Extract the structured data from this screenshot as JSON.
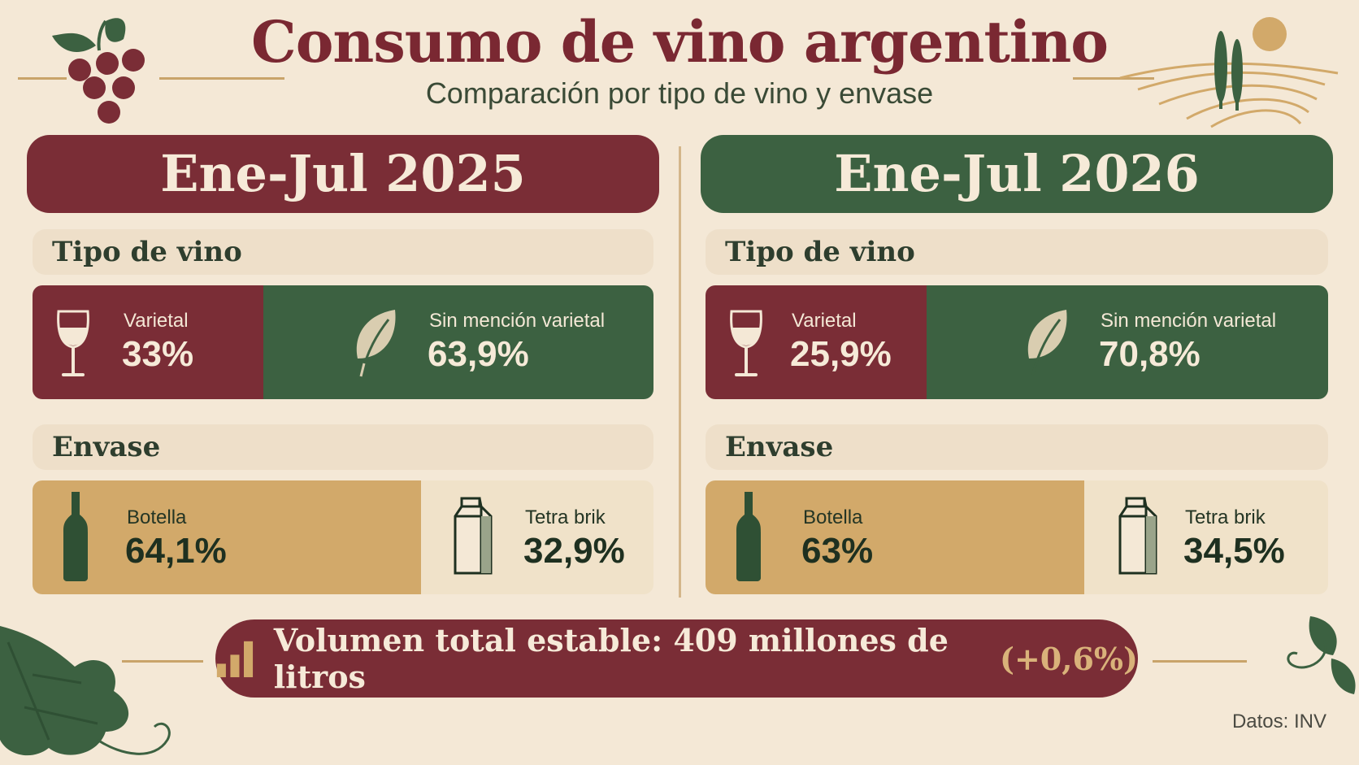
{
  "header": {
    "title": "Consumo de vino argentino",
    "subtitle": "Comparación por tipo de vino y envase"
  },
  "panels": [
    {
      "period": "Ene-Jul 2025",
      "wine_type_heading": "Tipo de vino",
      "varietal": {
        "label": "Varietal",
        "value": "33%"
      },
      "sin_mencion": {
        "label": "Sin mención varietal",
        "value": "63,9%"
      },
      "package_heading": "Envase",
      "botella": {
        "label": "Botella",
        "value": "64,1%"
      },
      "tetra": {
        "label": "Tetra brik",
        "value": "32,9%"
      }
    },
    {
      "period": "Ene-Jul 2026",
      "wine_type_heading": "Tipo de vino",
      "varietal": {
        "label": "Varietal",
        "value": "25,9%"
      },
      "sin_mencion": {
        "label": "Sin mención varietal",
        "value": "70,8%"
      },
      "package_heading": "Envase",
      "botella": {
        "label": "Botella",
        "value": "63%"
      },
      "tetra": {
        "label": "Tetra brik",
        "value": "34,5%"
      }
    }
  ],
  "summary": {
    "text": "Volumen total estable: 409 millones de litros",
    "change": "(+0,6%)"
  },
  "footer": {
    "source": "Datos: INV"
  },
  "colors": {
    "maroon": "#7a2d36",
    "green": "#3c6141",
    "gold": "#d2a96a",
    "cream": "#f4e8d6"
  },
  "icons": {
    "grapes": "grapes-icon",
    "vineyard": "vineyard-icon",
    "wine_glass": "wine-glass-icon",
    "leaf": "leaf-icon",
    "bottle": "bottle-icon",
    "tetra_brik": "tetra-brik-icon",
    "bar_chart": "bar-chart-icon",
    "vine_leaf": "vine-leaf-icon"
  }
}
